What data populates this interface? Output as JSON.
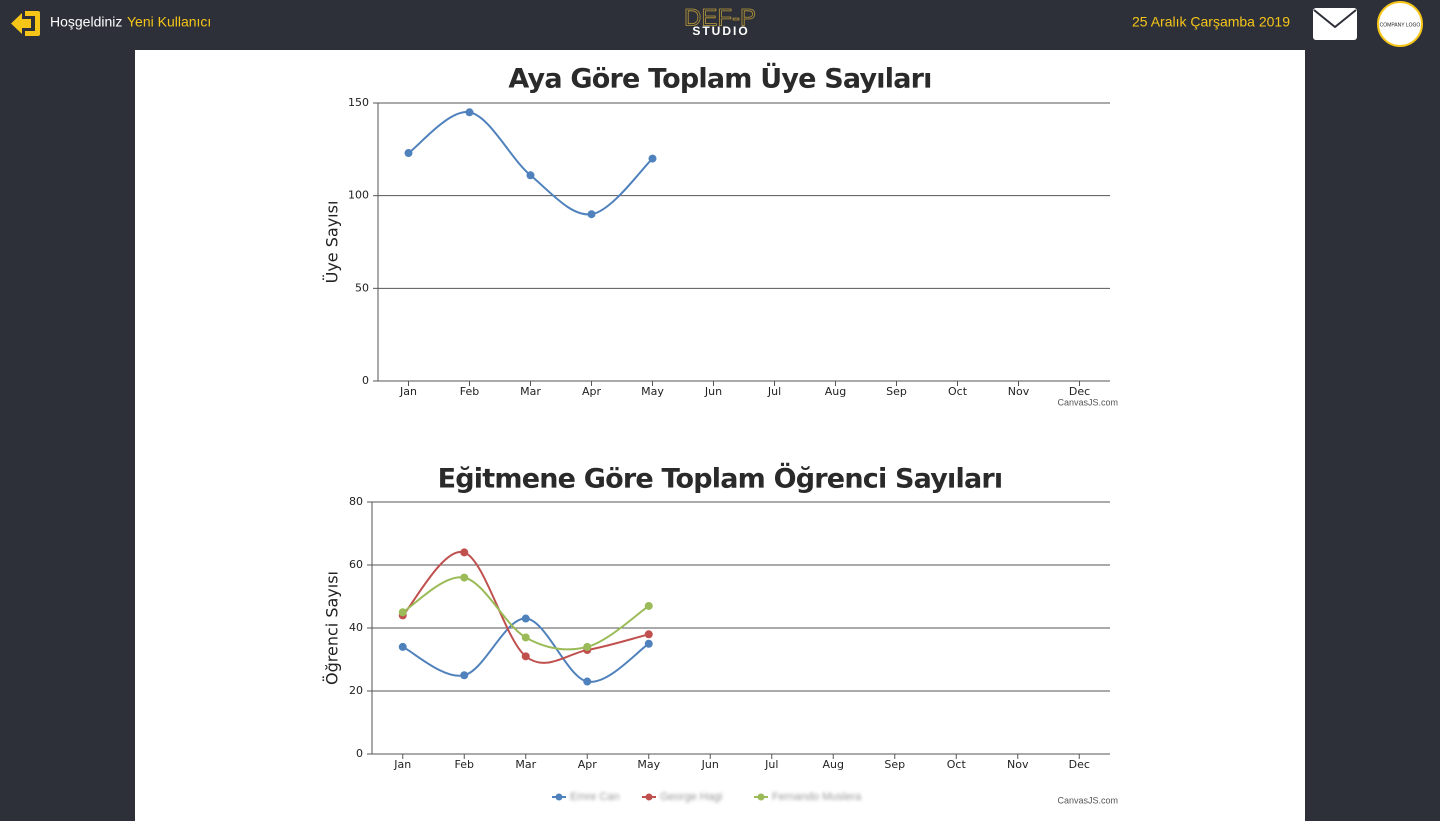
{
  "header": {
    "welcome": "Hoşgeldiniz",
    "user": "Yeni Kullanıcı",
    "logo_top": "DEF-P",
    "logo_bottom": "STUDIO",
    "date": "25 Aralık Çarşamba 2019",
    "company_logo": "COMPANY LOGO"
  },
  "chart_data": [
    {
      "type": "line",
      "title": "Aya Göre Toplam Üye Sayıları",
      "y_label": "Üye Sayısı",
      "credit": "CanvasJS.com",
      "categories": [
        "Jan",
        "Feb",
        "Mar",
        "Apr",
        "May",
        "Jun",
        "Jul",
        "Aug",
        "Sep",
        "Oct",
        "Nov",
        "Dec"
      ],
      "values": [
        123,
        145,
        111,
        90,
        120,
        null,
        null,
        null,
        null,
        null,
        null,
        null
      ],
      "color": "#4f81bc",
      "ylim": [
        0,
        150
      ],
      "yticks": [
        0,
        50,
        100,
        150
      ],
      "grid": true,
      "smooth": true
    },
    {
      "type": "line",
      "title": "Eğitmene Göre Toplam Öğrenci Sayıları",
      "y_label": "Öğrenci Sayısı",
      "credit": "CanvasJS.com",
      "categories": [
        "Jan",
        "Feb",
        "Mar",
        "Apr",
        "May",
        "Jun",
        "Jul",
        "Aug",
        "Sep",
        "Oct",
        "Nov",
        "Dec"
      ],
      "series": [
        {
          "name": "Emre Can",
          "color": "#4f81bc",
          "values": [
            34,
            25,
            43,
            23,
            35,
            null,
            null,
            null,
            null,
            null,
            null,
            null
          ]
        },
        {
          "name": "George Hagi",
          "color": "#c0504e",
          "values": [
            44,
            64,
            31,
            33,
            38,
            null,
            null,
            null,
            null,
            null,
            null,
            null
          ]
        },
        {
          "name": "Fernando Muslera",
          "color": "#9bbb58",
          "values": [
            45,
            56,
            37,
            34,
            47,
            null,
            null,
            null,
            null,
            null,
            null,
            null
          ]
        }
      ],
      "ylim": [
        0,
        80
      ],
      "yticks": [
        0,
        20,
        40,
        60,
        80
      ],
      "grid": true,
      "smooth": true,
      "legend": "bottom"
    }
  ]
}
